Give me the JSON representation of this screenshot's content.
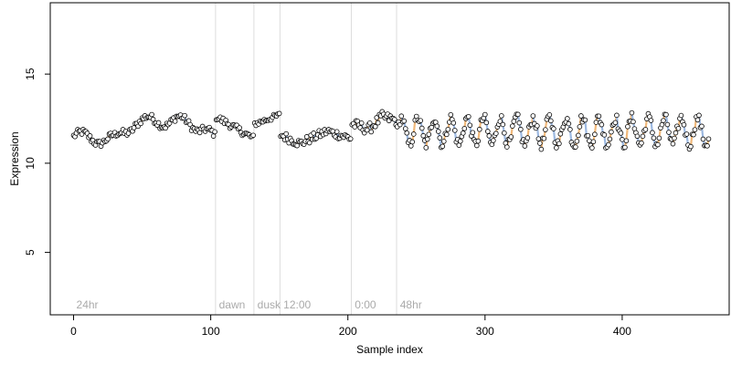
{
  "chart_data": {
    "type": "scatter",
    "title": "",
    "xlabel": "Sample index",
    "ylabel": "Expression",
    "xlim": [
      -17,
      478
    ],
    "ylim": [
      1.5,
      19
    ],
    "x_ticks": [
      0,
      100,
      200,
      300,
      400
    ],
    "y_ticks": [
      5,
      10,
      15
    ],
    "grid": false,
    "legend": "none",
    "colors": {
      "line_orange": "#f0b87a",
      "line_blue": "#9cb8e0",
      "point_outline": "#000000",
      "point_fill": "#ffffff",
      "separator": "#dddddd",
      "phase_text": "#aaaaaa"
    },
    "phases": [
      {
        "label": "24hr",
        "start": 0
      },
      {
        "label": "dawn",
        "start": 104
      },
      {
        "label": "dusk",
        "start": 132
      },
      {
        "label": "12:00",
        "start": 151
      },
      {
        "label": "0:00",
        "start": 203
      },
      {
        "label": "48hr",
        "start": 236
      }
    ],
    "series": [
      {
        "segments": [
          {
            "x0": 0,
            "x1": 103,
            "base": 11.5,
            "amp": 0.3,
            "period": 24,
            "noise": 0.2,
            "trend": [
              [
                0,
                11.5
              ],
              [
                30,
                11.3
              ],
              [
                45,
                12.3
              ],
              [
                75,
                12.4
              ],
              [
                95,
                12.0
              ],
              [
                103,
                11.3
              ]
            ]
          },
          {
            "x0": 104,
            "x1": 131,
            "trend": [
              [
                104,
                12.6
              ],
              [
                131,
                11.4
              ]
            ],
            "noise": 0.2
          },
          {
            "x0": 132,
            "x1": 150,
            "trend": [
              [
                132,
                12.2
              ],
              [
                150,
                12.7
              ]
            ],
            "noise": 0.15
          },
          {
            "x0": 151,
            "x1": 202,
            "trend": [
              [
                151,
                11.6
              ],
              [
                165,
                11.1
              ],
              [
                185,
                11.8
              ],
              [
                202,
                11.4
              ]
            ],
            "noise": 0.25
          },
          {
            "x0": 203,
            "x1": 235,
            "trend": [
              [
                203,
                12.2
              ],
              [
                215,
                11.9
              ],
              [
                225,
                12.6
              ],
              [
                235,
                12.4
              ]
            ],
            "noise": 0.3
          },
          {
            "x0": 236,
            "x1": 463,
            "base": 11.8,
            "amp": 0.75,
            "period": 12,
            "noise": 0.3
          }
        ]
      }
    ]
  }
}
